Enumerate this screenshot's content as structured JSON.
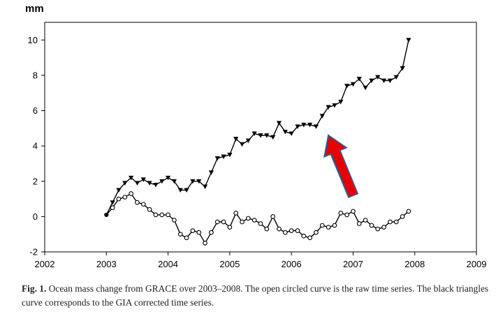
{
  "unit_label": "mm",
  "caption": {
    "fig_label": "Fig. 1.",
    "text": "Ocean mass change from GRACE over 2003–2008. The open circled curve is the raw time series. The black triangles curve corresponds to the GIA corrected time series."
  },
  "chart_data": {
    "type": "line",
    "title": "",
    "xlabel": "",
    "ylabel": "mm",
    "xlim": [
      2002,
      2009
    ],
    "ylim": [
      -2,
      11
    ],
    "x_ticks": [
      2002,
      2003,
      2004,
      2005,
      2006,
      2007,
      2008,
      2009
    ],
    "x_tick_labels": [
      "2002",
      "2003",
      "2004",
      "2005",
      "2006",
      "2007",
      "2008",
      "2009"
    ],
    "y_ticks": [
      -2,
      0,
      2,
      4,
      6,
      8,
      10
    ],
    "y_tick_labels": [
      "-2",
      "0",
      "2",
      "4",
      "6",
      "8",
      "10"
    ],
    "grid": false,
    "legend": "none",
    "series": [
      {
        "marker": "triangle-down",
        "color": "#000000",
        "x": [
          2003.0,
          2003.1,
          2003.2,
          2003.3,
          2003.4,
          2003.5,
          2003.6,
          2003.7,
          2003.8,
          2003.9,
          2004.0,
          2004.1,
          2004.2,
          2004.3,
          2004.4,
          2004.5,
          2004.6,
          2004.7,
          2004.8,
          2004.9,
          2005.0,
          2005.1,
          2005.2,
          2005.3,
          2005.4,
          2005.5,
          2005.6,
          2005.7,
          2005.8,
          2005.9,
          2006.0,
          2006.1,
          2006.2,
          2006.3,
          2006.4,
          2006.5,
          2006.6,
          2006.7,
          2006.8,
          2006.9,
          2007.0,
          2007.1,
          2007.2,
          2007.3,
          2007.4,
          2007.5,
          2007.6,
          2007.7,
          2007.8,
          2007.9
        ],
        "y": [
          0.1,
          0.8,
          1.5,
          1.9,
          2.2,
          1.9,
          2.1,
          1.9,
          1.8,
          2.0,
          2.2,
          2.0,
          1.5,
          1.5,
          2.0,
          2.0,
          1.7,
          2.5,
          3.3,
          3.4,
          3.5,
          4.4,
          4.1,
          4.3,
          4.7,
          4.6,
          4.6,
          4.5,
          5.3,
          4.8,
          4.7,
          5.1,
          5.2,
          5.2,
          5.1,
          5.7,
          6.2,
          6.3,
          6.5,
          7.4,
          7.5,
          7.8,
          7.3,
          7.7,
          7.9,
          7.7,
          7.7,
          7.9,
          8.4,
          10.0
        ]
      },
      {
        "marker": "open-circle",
        "color": "#000000",
        "x": [
          2003.0,
          2003.1,
          2003.2,
          2003.3,
          2003.4,
          2003.5,
          2003.6,
          2003.7,
          2003.8,
          2003.9,
          2004.0,
          2004.1,
          2004.2,
          2004.3,
          2004.4,
          2004.5,
          2004.6,
          2004.7,
          2004.8,
          2004.9,
          2005.0,
          2005.1,
          2005.2,
          2005.3,
          2005.4,
          2005.5,
          2005.6,
          2005.7,
          2005.8,
          2005.9,
          2006.0,
          2006.1,
          2006.2,
          2006.3,
          2006.4,
          2006.5,
          2006.6,
          2006.7,
          2006.8,
          2006.9,
          2007.0,
          2007.1,
          2007.2,
          2007.3,
          2007.4,
          2007.5,
          2007.6,
          2007.7,
          2007.8,
          2007.9
        ],
        "y": [
          0.1,
          0.5,
          1.0,
          1.1,
          1.3,
          0.8,
          0.7,
          0.4,
          0.1,
          0.1,
          0.1,
          -0.2,
          -1.0,
          -1.2,
          -0.8,
          -0.9,
          -1.5,
          -0.9,
          -0.3,
          -0.3,
          -0.6,
          0.2,
          -0.3,
          -0.1,
          -0.2,
          -0.4,
          -0.7,
          0.0,
          -0.7,
          -0.9,
          -0.8,
          -0.8,
          -1.1,
          -1.2,
          -0.9,
          -0.5,
          -0.6,
          -0.5,
          0.2,
          0.1,
          0.3,
          -0.4,
          -0.2,
          -0.5,
          -0.7,
          -0.6,
          -0.3,
          -0.3,
          0.0,
          0.3
        ]
      }
    ],
    "annotations": [
      {
        "type": "arrow",
        "color": "#e60000",
        "outline": "#3a5a8c",
        "from": [
          2007.0,
          1.2
        ],
        "to": [
          2006.6,
          4.6
        ]
      }
    ]
  }
}
